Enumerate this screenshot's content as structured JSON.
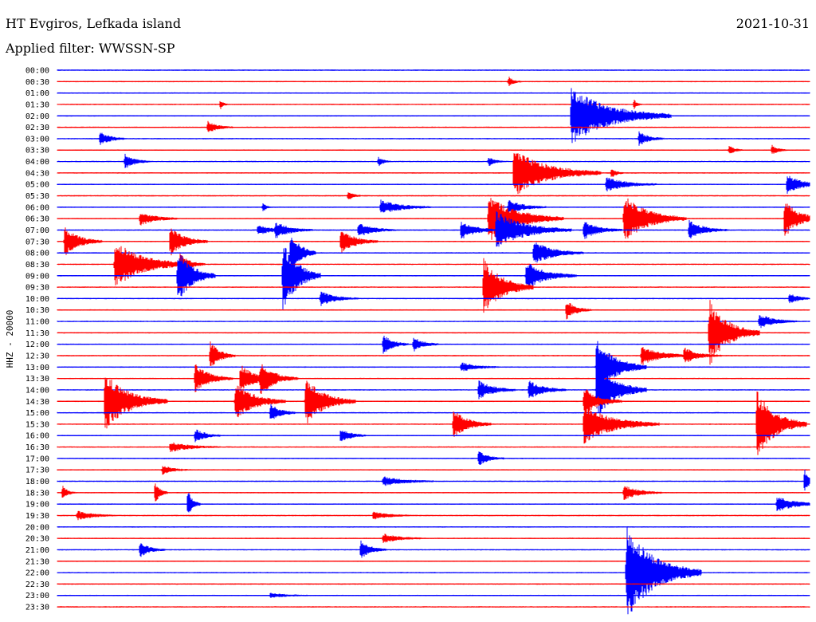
{
  "header": {
    "station": "HT Evgiros, Lefkada island",
    "date": "2021-10-31",
    "filter": "Applied filter: WWSSN-SP"
  },
  "chart_data": {
    "type": "line",
    "ylabel": "HHZ - 20000",
    "x_range_minutes": [
      0,
      30
    ],
    "colors": {
      "odd": "#0000ff",
      "even": "#ff0000"
    },
    "rows": [
      {
        "label": "00:00",
        "events": []
      },
      {
        "label": "00:30",
        "events": [
          [
            18,
            0.1,
            0.5
          ]
        ]
      },
      {
        "label": "01:00",
        "events": []
      },
      {
        "label": "01:30",
        "events": [
          [
            6.5,
            0.1,
            0.3
          ],
          [
            23,
            0.1,
            0.3
          ]
        ]
      },
      {
        "label": "02:00",
        "events": [
          [
            20.5,
            0.6,
            4
          ]
        ]
      },
      {
        "label": "02:30",
        "events": [
          [
            6.0,
            0.12,
            1
          ]
        ]
      },
      {
        "label": "03:00",
        "events": [
          [
            1.7,
            0.15,
            1.0
          ],
          [
            23.2,
            0.15,
            1.0
          ]
        ]
      },
      {
        "label": "03:30",
        "events": [
          [
            26.8,
            0.1,
            0.5
          ],
          [
            28.5,
            0.1,
            0.6
          ]
        ]
      },
      {
        "label": "04:00",
        "events": [
          [
            2.7,
            0.15,
            1.0
          ],
          [
            12.8,
            0.1,
            0.5
          ],
          [
            17.2,
            0.1,
            0.6
          ]
        ]
      },
      {
        "label": "04:30",
        "events": [
          [
            18.2,
            0.5,
            3.5
          ],
          [
            22.1,
            0.1,
            0.5
          ]
        ]
      },
      {
        "label": "05:00",
        "events": [
          [
            21.9,
            0.15,
            2
          ],
          [
            29.1,
            0.2,
            1.5
          ]
        ]
      },
      {
        "label": "05:30",
        "events": [
          [
            11.6,
            0.1,
            0.5
          ]
        ]
      },
      {
        "label": "06:00",
        "events": [
          [
            8.2,
            0.1,
            0.3
          ],
          [
            12.9,
            0.15,
            2
          ],
          [
            18.0,
            0.15,
            1.5
          ]
        ]
      },
      {
        "label": "06:30",
        "events": [
          [
            3.3,
            0.15,
            1.5
          ],
          [
            17.2,
            0.5,
            3
          ],
          [
            22.6,
            0.5,
            2.5
          ],
          [
            29.0,
            0.4,
            1.5
          ]
        ]
      },
      {
        "label": "07:00",
        "events": [
          [
            8.0,
            0.1,
            1.5
          ],
          [
            8.7,
            0.15,
            1.5
          ],
          [
            12.0,
            0.15,
            1.5
          ],
          [
            16.1,
            0.2,
            1.5
          ],
          [
            17.5,
            0.4,
            3
          ],
          [
            21.0,
            0.2,
            1.5
          ],
          [
            25.2,
            0.2,
            1.5
          ]
        ]
      },
      {
        "label": "07:30",
        "events": [
          [
            0.3,
            0.3,
            1.5
          ],
          [
            4.5,
            0.3,
            1.5
          ],
          [
            11.3,
            0.25,
            1.5
          ]
        ]
      },
      {
        "label": "08:00",
        "events": [
          [
            9.3,
            0.5,
            1.0
          ],
          [
            19.0,
            0.25,
            2
          ]
        ]
      },
      {
        "label": "08:30",
        "events": [
          [
            2.3,
            0.5,
            3
          ],
          [
            4.9,
            0.2,
            1.0
          ]
        ]
      },
      {
        "label": "09:00",
        "events": [
          [
            4.8,
            0.6,
            1.5
          ],
          [
            9.0,
            0.8,
            1.5
          ],
          [
            18.7,
            0.3,
            2
          ]
        ]
      },
      {
        "label": "09:30",
        "events": [
          [
            17.0,
            0.6,
            2
          ]
        ]
      },
      {
        "label": "10:00",
        "events": [
          [
            10.5,
            0.15,
            1.5
          ],
          [
            29.2,
            0.1,
            1.0
          ]
        ]
      },
      {
        "label": "10:30",
        "events": [
          [
            20.3,
            0.2,
            1.0
          ]
        ]
      },
      {
        "label": "11:00",
        "events": [
          [
            28.0,
            0.15,
            1.5
          ]
        ]
      },
      {
        "label": "11:30",
        "events": [
          [
            26.0,
            0.7,
            2
          ]
        ]
      },
      {
        "label": "12:00",
        "events": [
          [
            13.0,
            0.2,
            1.0
          ],
          [
            14.2,
            0.15,
            1.0
          ]
        ]
      },
      {
        "label": "12:30",
        "events": [
          [
            6.1,
            0.3,
            1.0
          ],
          [
            23.3,
            0.2,
            2
          ],
          [
            25.0,
            0.15,
            1.5
          ]
        ]
      },
      {
        "label": "13:00",
        "events": [
          [
            21.5,
            0.6,
            2
          ],
          [
            16.1,
            0.1,
            1.5
          ]
        ]
      },
      {
        "label": "13:30",
        "events": [
          [
            5.5,
            0.3,
            1.5
          ],
          [
            7.3,
            0.3,
            1.5
          ],
          [
            8.1,
            0.3,
            1.5
          ]
        ]
      },
      {
        "label": "14:00",
        "events": [
          [
            16.8,
            0.2,
            1.5
          ],
          [
            18.8,
            0.2,
            1.5
          ],
          [
            21.5,
            0.6,
            2
          ]
        ]
      },
      {
        "label": "14:30",
        "events": [
          [
            1.9,
            0.6,
            2.5
          ],
          [
            7.1,
            0.4,
            2
          ],
          [
            9.9,
            0.5,
            2
          ],
          [
            21.0,
            0.3,
            1.5
          ]
        ]
      },
      {
        "label": "15:00",
        "events": [
          [
            8.5,
            0.2,
            1.0
          ]
        ]
      },
      {
        "label": "15:30",
        "events": [
          [
            15.8,
            0.3,
            1.5
          ],
          [
            21.0,
            0.4,
            3
          ],
          [
            27.9,
            0.7,
            2
          ]
        ]
      },
      {
        "label": "16:00",
        "events": [
          [
            5.5,
            0.15,
            1.0
          ],
          [
            11.3,
            0.15,
            1.0
          ]
        ]
      },
      {
        "label": "16:30",
        "events": [
          [
            4.5,
            0.1,
            2
          ]
        ]
      },
      {
        "label": "17:00",
        "events": [
          [
            16.8,
            0.15,
            1.0
          ]
        ]
      },
      {
        "label": "17:30",
        "events": [
          [
            4.2,
            0.1,
            1.0
          ]
        ]
      },
      {
        "label": "18:00",
        "events": [
          [
            13.0,
            0.1,
            2
          ],
          [
            29.8,
            0.25,
            0.5
          ]
        ]
      },
      {
        "label": "18:30",
        "events": [
          [
            0.2,
            0.15,
            0.5
          ],
          [
            3.9,
            0.25,
            0.5
          ],
          [
            22.6,
            0.15,
            1.5
          ]
        ]
      },
      {
        "label": "19:00",
        "events": [
          [
            5.2,
            0.3,
            0.5
          ],
          [
            28.7,
            0.15,
            2
          ]
        ]
      },
      {
        "label": "19:30",
        "events": [
          [
            0.8,
            0.1,
            1.5
          ],
          [
            12.6,
            0.08,
            1.5
          ]
        ]
      },
      {
        "label": "20:00",
        "events": []
      },
      {
        "label": "20:30",
        "events": [
          [
            13.0,
            0.1,
            1.5
          ]
        ]
      },
      {
        "label": "21:00",
        "events": [
          [
            3.3,
            0.15,
            1.0
          ],
          [
            12.1,
            0.2,
            1.0
          ]
        ]
      },
      {
        "label": "21:30",
        "events": []
      },
      {
        "label": "22:00",
        "events": [
          [
            22.7,
            1.0,
            3
          ]
        ]
      },
      {
        "label": "22:30",
        "events": []
      },
      {
        "label": "23:00",
        "events": [
          [
            8.5,
            0.05,
            1.5
          ]
        ]
      },
      {
        "label": "23:30",
        "events": []
      }
    ]
  }
}
